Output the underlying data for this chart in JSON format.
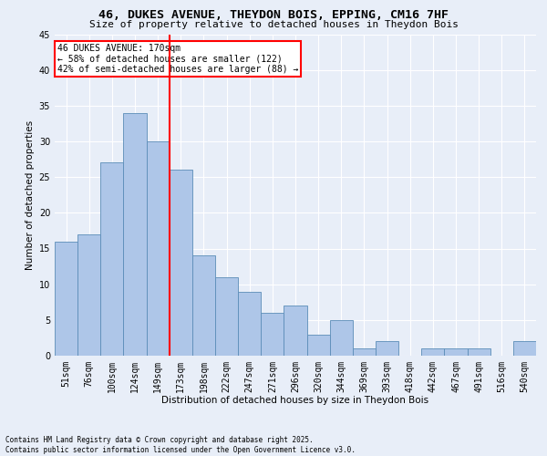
{
  "title1": "46, DUKES AVENUE, THEYDON BOIS, EPPING, CM16 7HF",
  "title2": "Size of property relative to detached houses in Theydon Bois",
  "xlabel": "Distribution of detached houses by size in Theydon Bois",
  "ylabel": "Number of detached properties",
  "bin_labels": [
    "51sqm",
    "76sqm",
    "100sqm",
    "124sqm",
    "149sqm",
    "173sqm",
    "198sqm",
    "222sqm",
    "247sqm",
    "271sqm",
    "296sqm",
    "320sqm",
    "344sqm",
    "369sqm",
    "393sqm",
    "418sqm",
    "442sqm",
    "467sqm",
    "491sqm",
    "516sqm",
    "540sqm"
  ],
  "bar_heights": [
    16,
    17,
    27,
    34,
    30,
    26,
    14,
    11,
    9,
    6,
    7,
    3,
    5,
    1,
    2,
    0,
    1,
    1,
    1,
    0,
    2
  ],
  "bar_color": "#aec6e8",
  "bar_edge_color": "#5b8db8",
  "vline_index": 5,
  "vline_color": "red",
  "annotation_title": "46 DUKES AVENUE: 170sqm",
  "annotation_line1": "← 58% of detached houses are smaller (122)",
  "annotation_line2": "42% of semi-detached houses are larger (88) →",
  "annotation_box_color": "white",
  "annotation_box_edge": "red",
  "ylim": [
    0,
    45
  ],
  "yticks": [
    0,
    5,
    10,
    15,
    20,
    25,
    30,
    35,
    40,
    45
  ],
  "footnote": "Contains HM Land Registry data © Crown copyright and database right 2025.\nContains public sector information licensed under the Open Government Licence v3.0.",
  "background_color": "#e8eef8",
  "plot_bg_color": "#e8eef8",
  "grid_color": "white",
  "title1_fontsize": 9.5,
  "title2_fontsize": 8,
  "ylabel_fontsize": 7.5,
  "xlabel_fontsize": 7.5,
  "tick_fontsize": 7,
  "annotation_fontsize": 7,
  "footnote_fontsize": 5.5
}
